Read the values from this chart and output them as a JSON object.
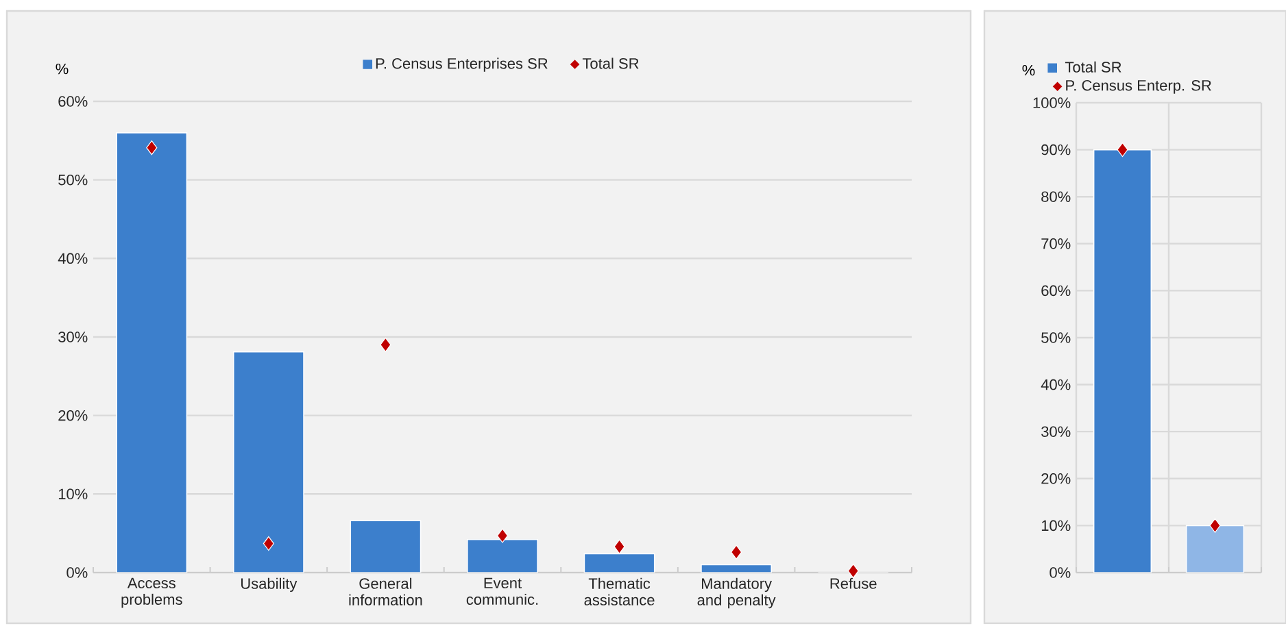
{
  "chart_data": [
    {
      "type": "bar",
      "ylabel": "%",
      "categories": [
        "Access problems",
        "Usability",
        "General information",
        "Event communic.",
        "Thematic assistance",
        "Mandatory and penalty",
        "Refuse"
      ],
      "series": [
        {
          "name": "P. Census Enterprises SR",
          "color": "#3c7fcc",
          "values": [
            56.0,
            28.1,
            6.6,
            4.2,
            2.4,
            1.0,
            0
          ]
        },
        {
          "name": "Total SR",
          "type": "scatter",
          "color": "#c00000",
          "values": [
            54.1,
            3.7,
            29.0,
            4.7,
            3.3,
            2.6,
            0.2
          ]
        }
      ],
      "ylim": [
        0,
        60
      ],
      "yticks": [
        {
          "value": 0,
          "label": "0%"
        },
        {
          "value": 10,
          "label": "10%"
        },
        {
          "value": 20,
          "label": "20%"
        },
        {
          "value": 30,
          "label": "30%"
        },
        {
          "value": 40,
          "label": "40%"
        },
        {
          "value": 50,
          "label": "50%"
        },
        {
          "value": 60,
          "label": "60%"
        }
      ],
      "grid": "y",
      "legend": "top",
      "marker": "diamond"
    },
    {
      "type": "bar",
      "ylabel": "%",
      "categories": [
        null,
        null
      ],
      "series": [
        {
          "name": "Total SR",
          "colors": [
            "#3c7fcc",
            "#8fb6e6"
          ],
          "values": [
            90,
            10
          ]
        },
        {
          "name": "P. Census Enterp. SR",
          "type": "scatter",
          "color": "#c00000",
          "values": [
            90,
            10
          ]
        }
      ],
      "ylim": [
        0,
        100
      ],
      "yticks": [
        {
          "value": 0,
          "label": "0%"
        },
        {
          "value": 10,
          "label": "10%"
        },
        {
          "value": 20,
          "label": "20%"
        },
        {
          "value": 30,
          "label": "30%"
        },
        {
          "value": 40,
          "label": "40%"
        },
        {
          "value": 50,
          "label": "50%"
        },
        {
          "value": 60,
          "label": "60%"
        },
        {
          "value": 70,
          "label": "70%"
        },
        {
          "value": 80,
          "label": "80%"
        },
        {
          "value": 90,
          "label": "90%"
        },
        {
          "value": 100,
          "label": "100%"
        }
      ],
      "grid": true,
      "legend": "top left",
      "marker": "diamond"
    }
  ]
}
